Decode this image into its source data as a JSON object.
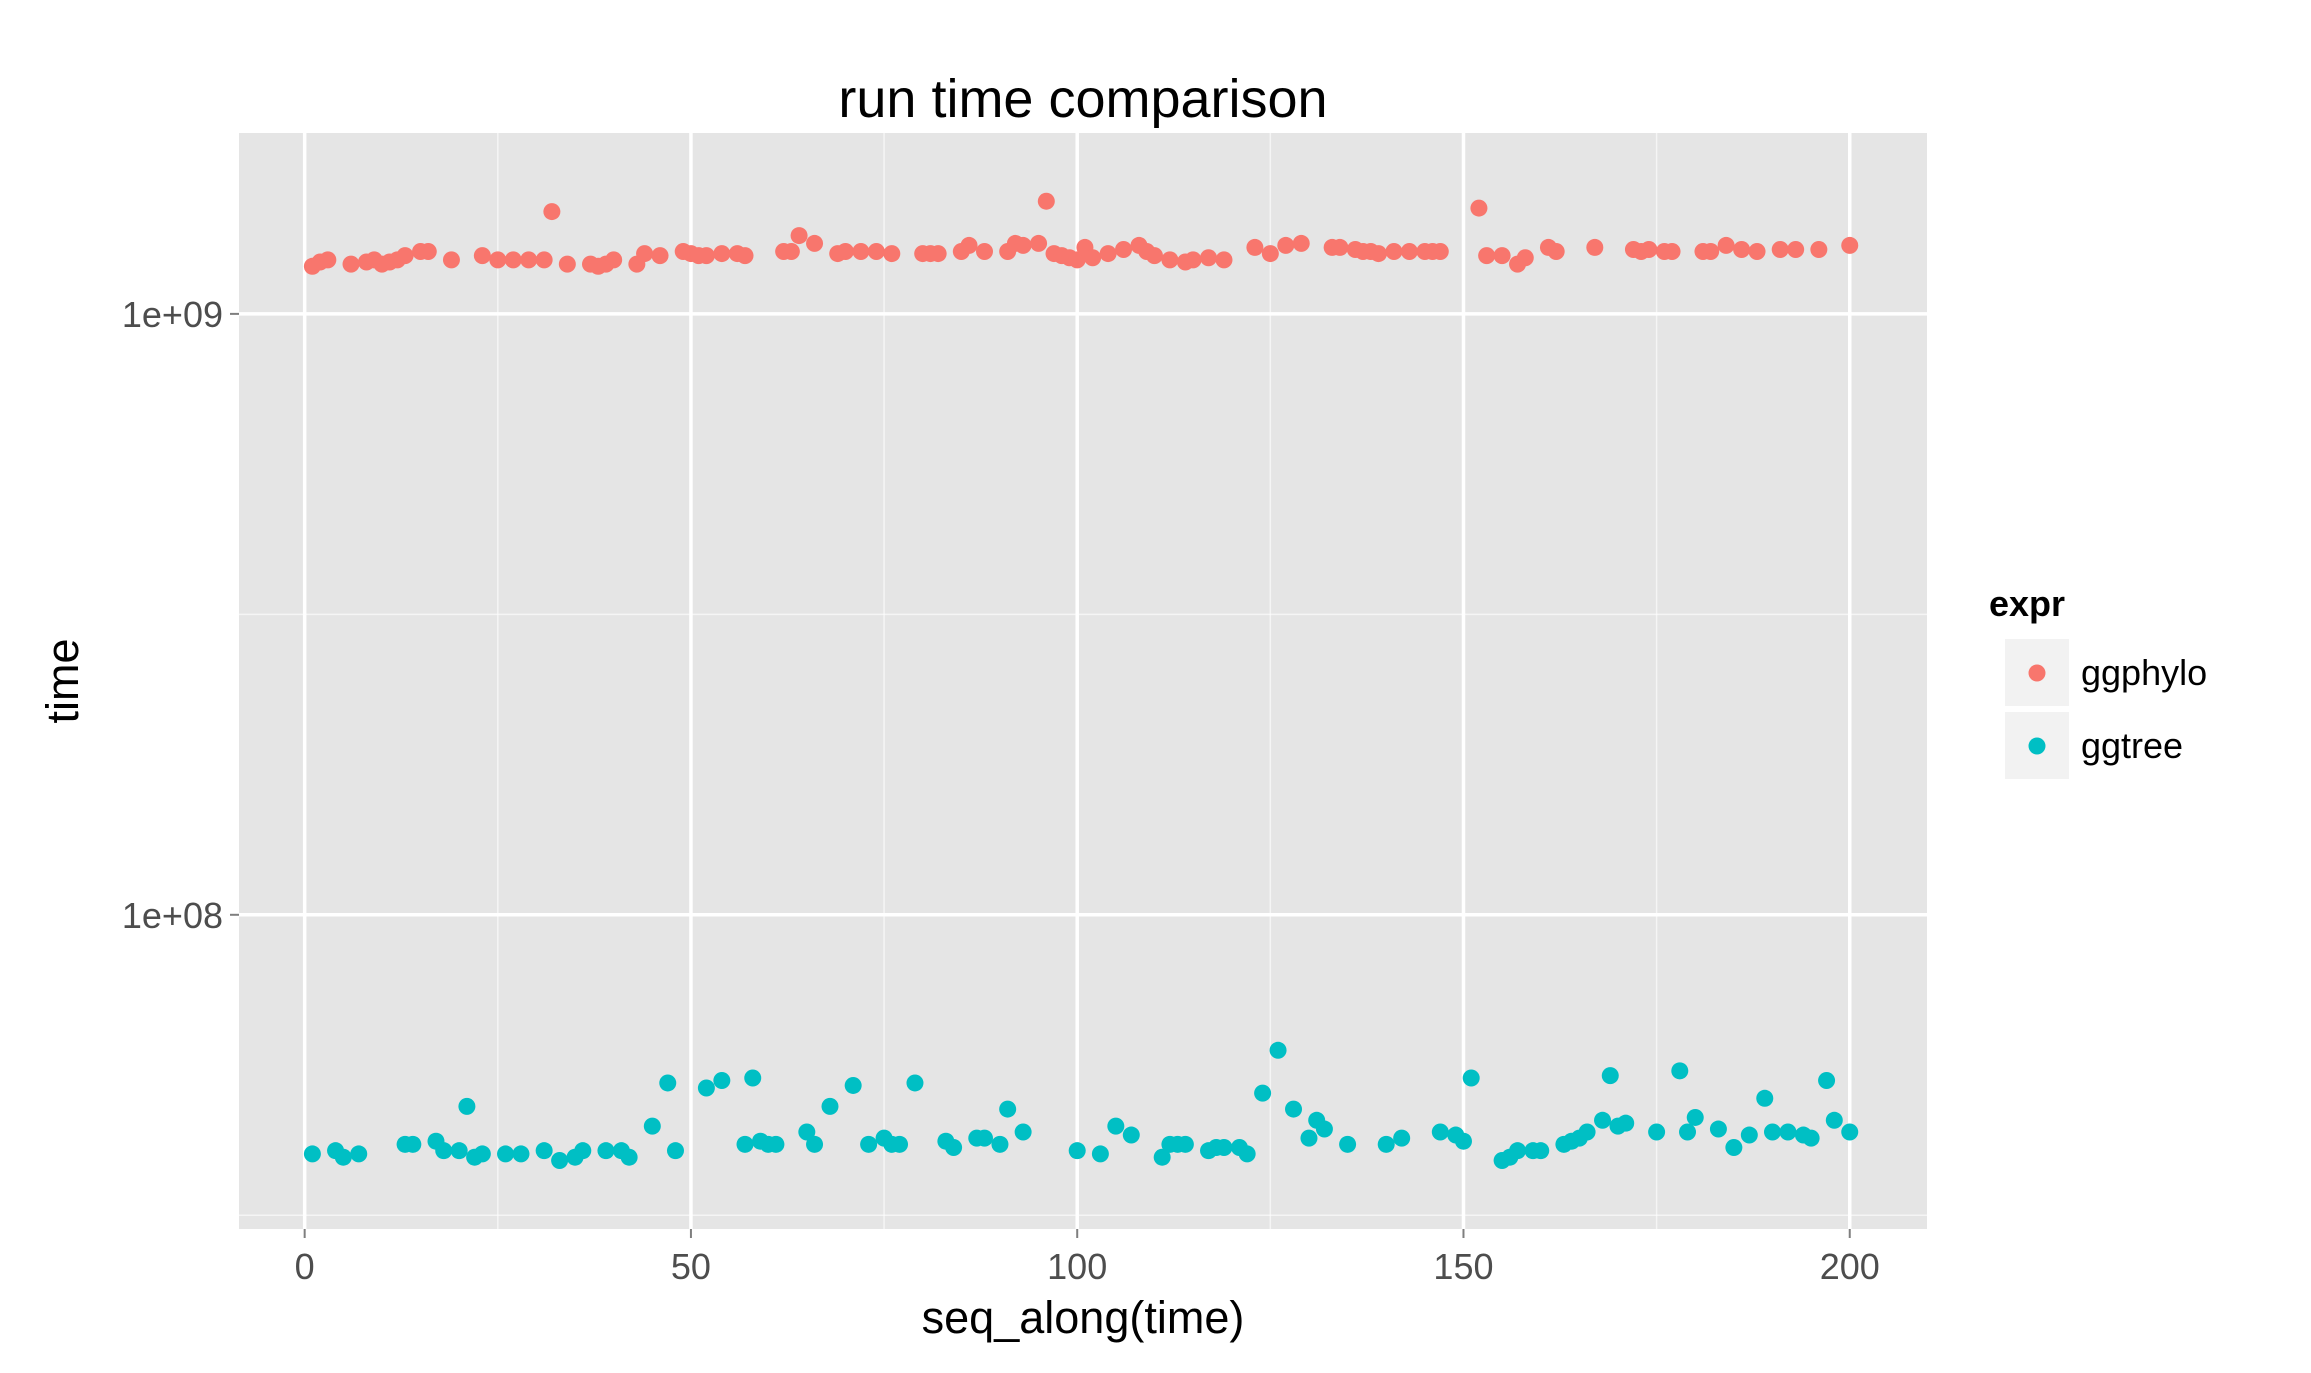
{
  "chart_data": {
    "type": "scatter",
    "title": "run time comparison",
    "xlabel": "seq_along(time)",
    "ylabel": "time",
    "y_scale": "log10",
    "grid": true,
    "legend_placement": "right",
    "xlim": [
      -8.5,
      210
    ],
    "ylim": [
      30000000,
      2000000000
    ],
    "x_ticks": [
      0,
      50,
      100,
      150,
      200
    ],
    "x_tick_labels": [
      "0",
      "50",
      "100",
      "150",
      "200"
    ],
    "y_ticks": [
      100000000,
      1000000000
    ],
    "y_tick_labels": [
      "1e+08",
      "1e+09"
    ],
    "legend": {
      "title": "expr",
      "entries": [
        "ggphylo",
        "ggtree"
      ]
    },
    "colors": {
      "ggphylo": "#F8766D",
      "ggtree": "#00BFC4",
      "panel": "#E5E5E5",
      "grid": "#FFFFFF",
      "text": "#4d4d4d"
    },
    "series": [
      {
        "name": "ggphylo",
        "x": [
          1,
          2,
          3,
          6,
          8,
          9,
          10,
          11,
          12,
          13,
          15,
          16,
          19,
          23,
          25,
          27,
          29,
          31,
          32,
          34,
          37,
          38,
          39,
          40,
          43,
          44,
          46,
          49,
          50,
          51,
          52,
          54,
          56,
          57,
          62,
          63,
          64,
          66,
          69,
          70,
          72,
          74,
          76,
          80,
          81,
          82,
          85,
          86,
          88,
          91,
          92,
          93,
          95,
          96,
          97,
          98,
          99,
          100,
          101,
          102,
          104,
          106,
          108,
          109,
          110,
          112,
          114,
          115,
          117,
          119,
          123,
          125,
          127,
          129,
          133,
          134,
          136,
          137,
          138,
          139,
          141,
          143,
          145,
          146,
          147,
          152,
          153,
          155,
          157,
          158,
          161,
          162,
          167,
          172,
          173,
          174,
          176,
          177,
          181,
          182,
          184,
          186,
          188,
          191,
          193,
          196,
          200
        ],
        "y": [
          1200000000,
          1220000000,
          1230000000,
          1210000000,
          1220000000,
          1230000000,
          1210000000,
          1220000000,
          1230000000,
          1250000000,
          1270000000,
          1270000000,
          1230000000,
          1250000000,
          1230000000,
          1230000000,
          1230000000,
          1230000000,
          1480000000,
          1210000000,
          1210000000,
          1200000000,
          1210000000,
          1230000000,
          1210000000,
          1260000000,
          1250000000,
          1270000000,
          1260000000,
          1250000000,
          1250000000,
          1260000000,
          1260000000,
          1250000000,
          1270000000,
          1270000000,
          1350000000,
          1310000000,
          1260000000,
          1270000000,
          1270000000,
          1270000000,
          1260000000,
          1260000000,
          1260000000,
          1260000000,
          1270000000,
          1300000000,
          1270000000,
          1270000000,
          1310000000,
          1300000000,
          1310000000,
          1540000000,
          1260000000,
          1250000000,
          1240000000,
          1230000000,
          1290000000,
          1240000000,
          1260000000,
          1280000000,
          1300000000,
          1270000000,
          1250000000,
          1230000000,
          1220000000,
          1230000000,
          1240000000,
          1230000000,
          1290000000,
          1260000000,
          1300000000,
          1310000000,
          1290000000,
          1290000000,
          1280000000,
          1270000000,
          1270000000,
          1260000000,
          1270000000,
          1270000000,
          1270000000,
          1270000000,
          1270000000,
          1500000000,
          1250000000,
          1250000000,
          1210000000,
          1240000000,
          1290000000,
          1270000000,
          1290000000,
          1280000000,
          1270000000,
          1280000000,
          1270000000,
          1270000000,
          1270000000,
          1270000000,
          1300000000,
          1280000000,
          1270000000,
          1280000000,
          1280000000,
          1280000000,
          1300000000
        ]
      },
      {
        "name": "ggtree",
        "x": [
          1,
          4,
          5,
          7,
          13,
          14,
          17,
          18,
          20,
          21,
          22,
          23,
          26,
          28,
          31,
          33,
          35,
          36,
          39,
          41,
          42,
          45,
          47,
          48,
          52,
          54,
          57,
          58,
          59,
          60,
          61,
          65,
          66,
          68,
          71,
          73,
          75,
          76,
          77,
          79,
          83,
          84,
          87,
          88,
          90,
          91,
          93,
          100,
          103,
          105,
          107,
          111,
          112,
          113,
          114,
          117,
          118,
          119,
          121,
          122,
          124,
          126,
          128,
          130,
          131,
          132,
          135,
          140,
          142,
          147,
          149,
          150,
          151,
          155,
          156,
          157,
          159,
          160,
          163,
          164,
          165,
          166,
          168,
          169,
          170,
          171,
          175,
          178,
          179,
          180,
          183,
          185,
          187,
          189,
          190,
          192,
          194,
          195,
          197,
          198,
          200
        ],
        "y": [
          40000000,
          40500000,
          39500000,
          40000000,
          41500000,
          41500000,
          42000000,
          40500000,
          40500000,
          48000000,
          39500000,
          40000000,
          40000000,
          40000000,
          40500000,
          39000000,
          39500000,
          40500000,
          40500000,
          40500000,
          39500000,
          44500000,
          52500000,
          40500000,
          51500000,
          53000000,
          41500000,
          53500000,
          42000000,
          41500000,
          41500000,
          43500000,
          41500000,
          48000000,
          52000000,
          41500000,
          42500000,
          41500000,
          41500000,
          52500000,
          42000000,
          41000000,
          42500000,
          42500000,
          41500000,
          47500000,
          43500000,
          40500000,
          40000000,
          44500000,
          43000000,
          39500000,
          41500000,
          41500000,
          41500000,
          40500000,
          41000000,
          41000000,
          41000000,
          40000000,
          50500000,
          59500000,
          47500000,
          42500000,
          45500000,
          44000000,
          41500000,
          41500000,
          42500000,
          43500000,
          43000000,
          42000000,
          53500000,
          39000000,
          39500000,
          40500000,
          40500000,
          40500000,
          41500000,
          42000000,
          42500000,
          43500000,
          45500000,
          54000000,
          44500000,
          45000000,
          43500000,
          55000000,
          43500000,
          46000000,
          44000000,
          41000000,
          43000000,
          49500000,
          43500000,
          43500000,
          43000000,
          42500000,
          53000000,
          45500000,
          43500000
        ]
      }
    ]
  }
}
